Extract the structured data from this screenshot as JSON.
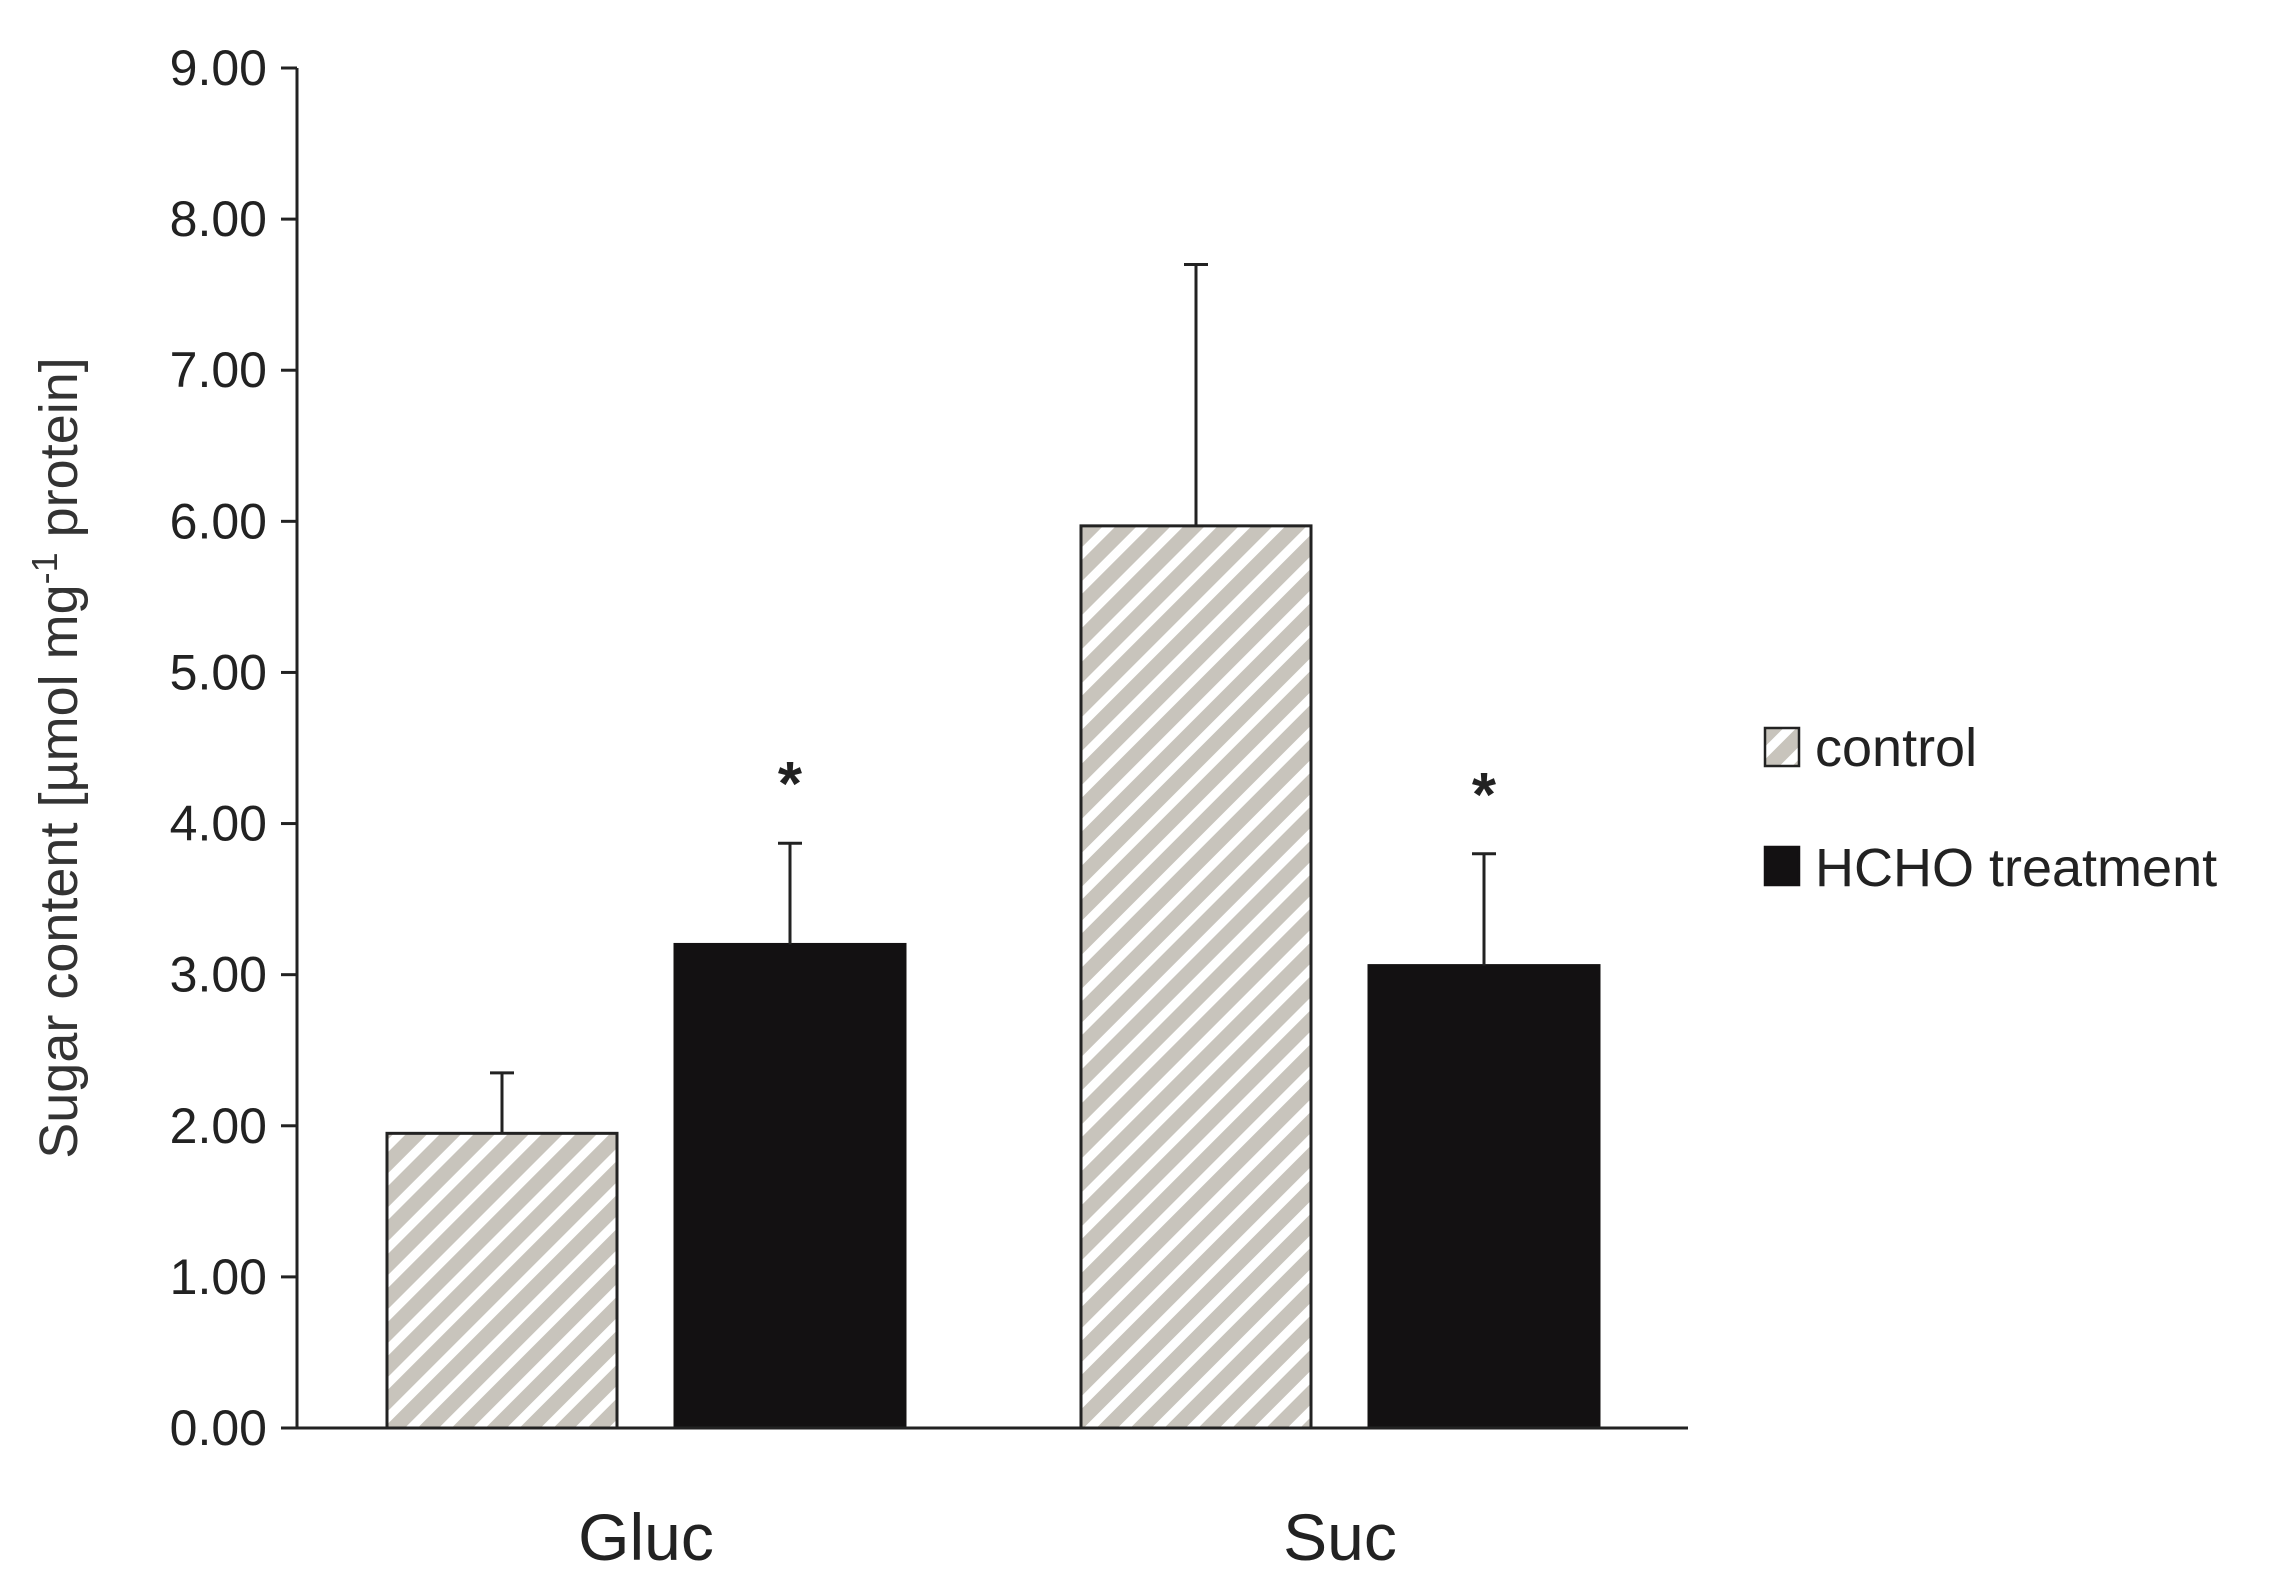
{
  "chart_data": {
    "type": "bar",
    "categories": [
      "Gluc",
      "Suc"
    ],
    "series": [
      {
        "name": "control",
        "values": [
          1.95,
          5.97
        ],
        "errors": [
          0.4,
          1.73
        ],
        "significance": [
          "",
          ""
        ],
        "color": "#c8c4bc",
        "pattern": "diagonal-hatch"
      },
      {
        "name": "HCHO treatment",
        "values": [
          3.2,
          3.06
        ],
        "errors": [
          0.67,
          0.74
        ],
        "significance": [
          "*",
          "*"
        ],
        "color": "#131112",
        "pattern": "solid"
      }
    ],
    "ylabel_main": "Sugar content [µmol mg",
    "ylabel_sup": "-1",
    "ylabel_tail": " protein]",
    "ylim": [
      0,
      9
    ],
    "yticks": [
      "0.00",
      "1.00",
      "2.00",
      "3.00",
      "4.00",
      "5.00",
      "6.00",
      "7.00",
      "8.00",
      "9.00"
    ],
    "grid": false,
    "legend_position": "right"
  }
}
